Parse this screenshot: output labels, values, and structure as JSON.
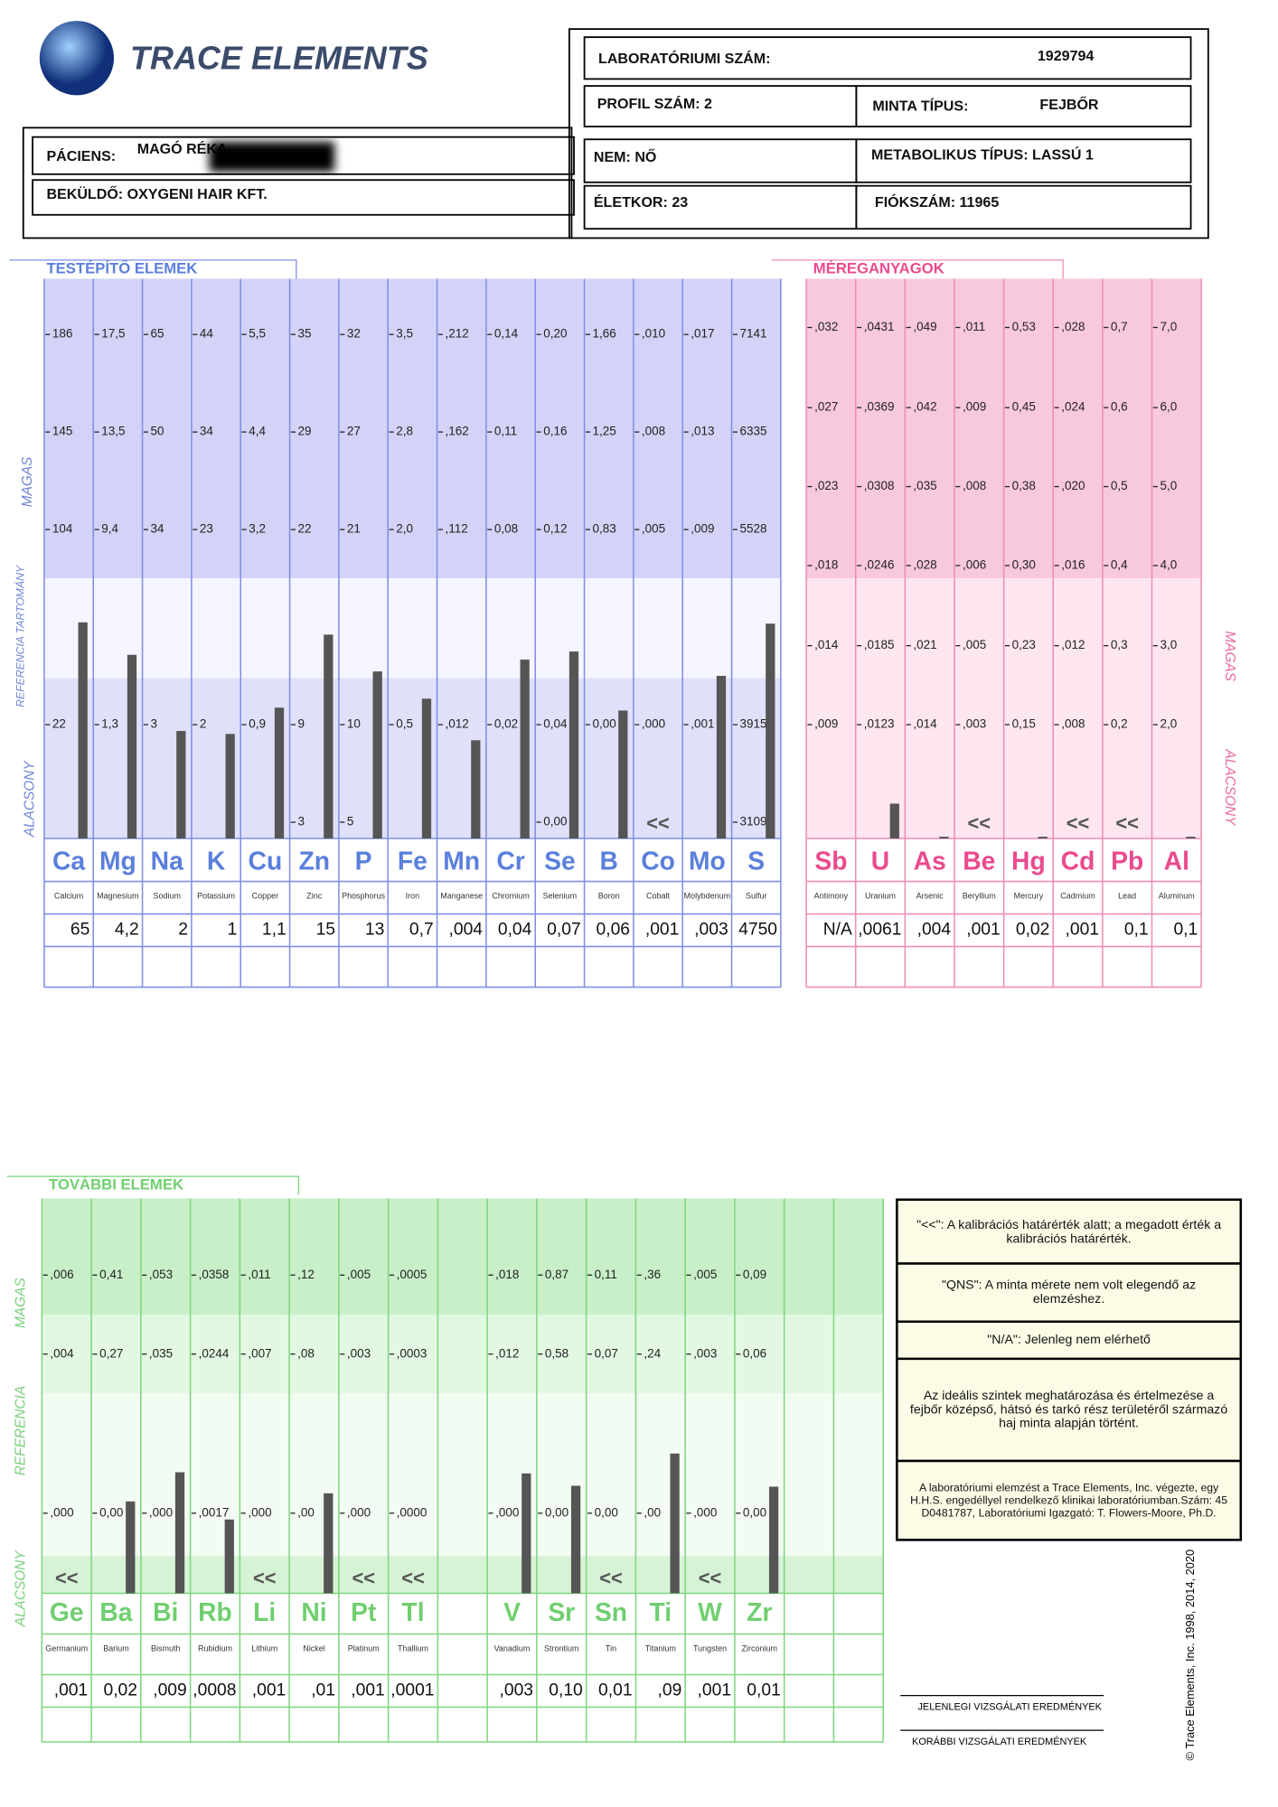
{
  "header": {
    "logo": "TRACE ELEMENTS",
    "lab_label": "LABORATÓRIUMI SZÁM:",
    "lab_number": "1929794",
    "profile": "PROFIL SZÁM: 2",
    "sample_label": "MINTA TÍPUS:",
    "sample_type": "FEJBŐR",
    "patient_label": "PÁCIENS:",
    "patient_name": "MAGÓ RÉKA",
    "sex": "NEM: NŐ",
    "metabolic": "METABOLIKUS TÍPUS: LASSÚ 1",
    "sender": "BEKÜLDŐ: OXYGENI HAIR KFT.",
    "age": "ÉLETKOR: 23",
    "account": "FIÓKSZÁM: 11965"
  },
  "panels": [
    {
      "title": "TESTÉPÍTŐ ELEMEK",
      "side_labels": [
        "MAGAS",
        "REFERENCIA TARTOMÁNY",
        "ALACSONY"
      ],
      "symbols": [
        "Ca",
        "Mg",
        "Na",
        "K",
        "Cu",
        "Zn",
        "P",
        "Fe",
        "Mn",
        "Cr",
        "Se",
        "B",
        "Co",
        "Mo",
        "S"
      ],
      "names": [
        "Calcium",
        "Magnesium",
        "Sodium",
        "Potassium",
        "Copper",
        "Zinc",
        "Phosphorus",
        "Iron",
        "Manganese",
        "Chromium",
        "Selenium",
        "Boron",
        "Cobalt",
        "Molybdenum",
        "Sulfur"
      ],
      "values": [
        65,
        4.2,
        2,
        1,
        1.1,
        15,
        13,
        0.7,
        0.004,
        0.04,
        0.07,
        0.06,
        0.001,
        0.003,
        4750
      ],
      "value_labels": [
        "65",
        "4,2",
        "2",
        "1",
        "1,1",
        "15",
        "13",
        "0,7",
        ",004",
        "0,04",
        "0,07",
        "0,06",
        ",001",
        ",003",
        "4750"
      ],
      "flags": [
        null,
        null,
        null,
        null,
        null,
        null,
        null,
        null,
        null,
        null,
        null,
        null,
        "<<",
        null,
        null
      ],
      "ticks": [
        [
          186,
          145,
          104,
          22,
          null
        ],
        [
          {
            "value": 17.5,
            "label": "17,5"
          },
          {
            "value": 13.5,
            "label": "13,5"
          },
          {
            "value": 9.4,
            "label": "9,4"
          },
          {
            "value": 1.3,
            "label": "1,3"
          },
          null
        ],
        [
          65,
          50,
          34,
          3,
          null
        ],
        [
          44,
          34,
          23,
          2,
          null
        ],
        [
          {
            "value": 5.5,
            "label": "5,5"
          },
          {
            "value": 4.4,
            "label": "4,4"
          },
          {
            "value": 3.2,
            "label": "3,2"
          },
          {
            "value": 0.9,
            "label": "0,9"
          },
          null
        ],
        [
          35,
          29,
          22,
          9,
          3
        ],
        [
          32,
          27,
          21,
          10,
          5
        ],
        [
          {
            "value": 3.5,
            "label": "3,5"
          },
          {
            "value": 2.8,
            "label": "2,8"
          },
          {
            "value": 2.0,
            "label": "2,0"
          },
          {
            "value": 0.5,
            "label": "0,5"
          },
          null
        ],
        [
          {
            "value": 0.212,
            "label": ",212"
          },
          {
            "value": 0.162,
            "label": ",162"
          },
          {
            "value": 0.112,
            "label": ",112"
          },
          {
            "value": 0.012,
            "label": ",012"
          },
          null
        ],
        [
          {
            "value": 0.14,
            "label": "0,14"
          },
          {
            "value": 0.11,
            "label": "0,11"
          },
          {
            "value": 0.08,
            "label": "0,08"
          },
          {
            "value": 0.02,
            "label": "0,02"
          },
          null
        ],
        [
          {
            "value": 0.2,
            "label": "0,20"
          },
          {
            "value": 0.16,
            "label": "0,16"
          },
          {
            "value": 0.12,
            "label": "0,12"
          },
          {
            "value": 0.04,
            "label": "0,04"
          },
          {
            "value": 0,
            "label": "0,00"
          }
        ],
        [
          {
            "value": 1.66,
            "label": "1,66"
          },
          {
            "value": 1.25,
            "label": "1,25"
          },
          {
            "value": 0.83,
            "label": "0,83"
          },
          {
            "value": 0,
            "label": "0,00"
          },
          null
        ],
        [
          {
            "value": 0.01,
            "label": ",010"
          },
          {
            "value": 0.008,
            "label": ",008"
          },
          {
            "value": 0.005,
            "label": ",005"
          },
          {
            "value": 0,
            "label": ",000"
          },
          null
        ],
        [
          {
            "value": 0.017,
            "label": ",017"
          },
          {
            "value": 0.013,
            "label": ",013"
          },
          {
            "value": 0.009,
            "label": ",009"
          },
          {
            "value": 0.001,
            "label": ",001"
          },
          null
        ],
        [
          7141,
          6335,
          5528,
          3915,
          3109
        ]
      ]
    },
    {
      "title": "MÉREGANYAGOK",
      "side_labels": [
        "MAGAS",
        "ALACSONY"
      ],
      "symbols": [
        "Sb",
        "U",
        "As",
        "Be",
        "Hg",
        "Cd",
        "Pb",
        "Al"
      ],
      "names": [
        "Antimony",
        "Uranium",
        "Arsenic",
        "Beryllium",
        "Mercury",
        "Cadmium",
        "Lead",
        "Aluminum"
      ],
      "values": [
        null,
        0.0061,
        0.004,
        0.001,
        0.02,
        0.001,
        0.1,
        0.1
      ],
      "value_labels": [
        "N/A",
        ",0061",
        ",004",
        ",001",
        "0,02",
        ",001",
        "0,1",
        "0,1"
      ],
      "flags": [
        null,
        null,
        null,
        "<<",
        null,
        "<<",
        "<<",
        null
      ],
      "ticks": [
        [
          {
            "value": 0.032,
            "label": ",032"
          },
          {
            "value": 0.027,
            "label": ",027"
          },
          {
            "value": 0.023,
            "label": ",023"
          },
          {
            "value": 0.018,
            "label": ",018"
          },
          {
            "value": 0.014,
            "label": ",014"
          },
          {
            "value": 0.009,
            "label": ",009"
          }
        ],
        [
          {
            "value": 0.0431,
            "label": ",0431"
          },
          {
            "value": 0.0369,
            "label": ",0369"
          },
          {
            "value": 0.0308,
            "label": ",0308"
          },
          {
            "value": 0.0246,
            "label": ",0246"
          },
          {
            "value": 0.0185,
            "label": ",0185"
          },
          {
            "value": 0.0123,
            "label": ",0123"
          }
        ],
        [
          {
            "value": 0.049,
            "label": ",049"
          },
          {
            "value": 0.042,
            "label": ",042"
          },
          {
            "value": 0.035,
            "label": ",035"
          },
          {
            "value": 0.028,
            "label": ",028"
          },
          {
            "value": 0.021,
            "label": ",021"
          },
          {
            "value": 0.014,
            "label": ",014"
          }
        ],
        [
          {
            "value": 0.011,
            "label": ",011"
          },
          {
            "value": 0.009,
            "label": ",009"
          },
          {
            "value": 0.008,
            "label": ",008"
          },
          {
            "value": 0.006,
            "label": ",006"
          },
          {
            "value": 0.005,
            "label": ",005"
          },
          {
            "value": 0.003,
            "label": ",003"
          }
        ],
        [
          {
            "value": 0.53,
            "label": "0,53"
          },
          {
            "value": 0.45,
            "label": "0,45"
          },
          {
            "value": 0.38,
            "label": "0,38"
          },
          {
            "value": 0.3,
            "label": "0,30"
          },
          {
            "value": 0.23,
            "label": "0,23"
          },
          {
            "value": 0.15,
            "label": "0,15"
          }
        ],
        [
          {
            "value": 0.028,
            "label": ",028"
          },
          {
            "value": 0.024,
            "label": ",024"
          },
          {
            "value": 0.02,
            "label": ",020"
          },
          {
            "value": 0.016,
            "label": ",016"
          },
          {
            "value": 0.012,
            "label": ",012"
          },
          {
            "value": 0.008,
            "label": ",008"
          }
        ],
        [
          {
            "value": 0.7,
            "label": "0,7"
          },
          {
            "value": 0.6,
            "label": "0,6"
          },
          {
            "value": 0.5,
            "label": "0,5"
          },
          {
            "value": 0.4,
            "label": "0,4"
          },
          {
            "value": 0.3,
            "label": "0,3"
          },
          {
            "value": 0.2,
            "label": "0,2"
          }
        ],
        [
          {
            "value": 7,
            "label": "7,0"
          },
          {
            "value": 6,
            "label": "6,0"
          },
          {
            "value": 5,
            "label": "5,0"
          },
          {
            "value": 4,
            "label": "4,0"
          },
          {
            "value": 3,
            "label": "3,0"
          },
          {
            "value": 2,
            "label": "2,0"
          }
        ]
      ]
    },
    {
      "title": "TOVÁBBI ELEMEK",
      "side_labels": [
        "MAGAS",
        "REFERENCIA",
        "ALACSONY"
      ],
      "symbols": [
        "Ge",
        "Ba",
        "Bi",
        "Rb",
        "Li",
        "Ni",
        "Pt",
        "Tl",
        null,
        "V",
        "Sr",
        "Sn",
        "Ti",
        "W",
        "Zr",
        null,
        null
      ],
      "names": [
        "Germanium",
        "Barium",
        "Bismuth",
        "Rubidium",
        "Lithium",
        "Nickel",
        "Platinum",
        "Thallium",
        null,
        "Vanadium",
        "Strontium",
        "Tin",
        "Titanium",
        "Tungsten",
        "Zirconium",
        null,
        null
      ],
      "values": [
        0.001,
        0.02,
        0.009,
        0.0008,
        0.001,
        0.01,
        0.001,
        0.0001,
        null,
        0.003,
        0.1,
        0.01,
        0.09,
        0.001,
        0.01,
        null,
        null
      ],
      "value_labels": [
        ",001",
        "0,02",
        ",009",
        ",0008",
        ",001",
        ",01",
        ",001",
        ",0001",
        null,
        ",003",
        "0,10",
        "0,01",
        ",09",
        ",001",
        "0,01",
        null,
        null
      ],
      "flags": [
        "<<",
        null,
        null,
        null,
        "<<",
        null,
        "<<",
        "<<",
        null,
        null,
        null,
        "<<",
        null,
        "<<",
        null,
        null,
        null
      ],
      "ticks": [
        [
          {
            "value": 0.006,
            "label": ",006"
          },
          {
            "value": 0.004,
            "label": ",004"
          },
          {
            "value": 0,
            "label": ",000"
          }
        ],
        [
          {
            "value": 0.41,
            "label": "0,41"
          },
          {
            "value": 0.27,
            "label": "0,27"
          },
          {
            "value": 0,
            "label": "0,00"
          }
        ],
        [
          {
            "value": 0.053,
            "label": ",053"
          },
          {
            "value": 0.035,
            "label": ",035"
          },
          {
            "value": 0,
            "label": ",000"
          }
        ],
        [
          {
            "value": 0.0358,
            "label": ",0358"
          },
          {
            "value": 0.0244,
            "label": ",0244"
          },
          {
            "value": 0.0017,
            "label": ",0017"
          }
        ],
        [
          {
            "value": 0.011,
            "label": ",011"
          },
          {
            "value": 0.007,
            "label": ",007"
          },
          {
            "value": 0,
            "label": ",000"
          }
        ],
        [
          {
            "value": 0.12,
            "label": ",12"
          },
          {
            "value": 0.08,
            "label": ",08"
          },
          {
            "value": 0,
            "label": ",00"
          }
        ],
        [
          {
            "value": 0.005,
            "label": ",005"
          },
          {
            "value": 0.003,
            "label": ",003"
          },
          {
            "value": 0,
            "label": ",000"
          }
        ],
        [
          {
            "value": 0.0005,
            "label": ",0005"
          },
          {
            "value": 0.0003,
            "label": ",0003"
          },
          {
            "value": 0,
            "label": ",0000"
          }
        ],
        null,
        [
          {
            "value": 0.018,
            "label": ",018"
          },
          {
            "value": 0.012,
            "label": ",012"
          },
          {
            "value": 0,
            "label": ",000"
          }
        ],
        [
          {
            "value": 0.87,
            "label": "0,87"
          },
          {
            "value": 0.58,
            "label": "0,58"
          },
          {
            "value": 0,
            "label": "0,00"
          }
        ],
        [
          {
            "value": 0.11,
            "label": "0,11"
          },
          {
            "value": 0.07,
            "label": "0,07"
          },
          {
            "value": 0,
            "label": "0,00"
          }
        ],
        [
          {
            "value": 0.36,
            "label": ",36"
          },
          {
            "value": 0.24,
            "label": ",24"
          },
          {
            "value": 0,
            "label": ",00"
          }
        ],
        [
          {
            "value": 0.005,
            "label": ",005"
          },
          {
            "value": 0.003,
            "label": ",003"
          },
          {
            "value": 0,
            "label": ",000"
          }
        ],
        [
          {
            "value": 0.09,
            "label": "0,09"
          },
          {
            "value": 0.06,
            "label": "0,06"
          },
          {
            "value": 0,
            "label": "0,00"
          }
        ],
        null,
        null
      ]
    }
  ],
  "notes": [
    "\"<<\": A kalibrációs határérték alatt; a megadott érték a kalibrációs határérték.",
    "\"QNS\": A minta mérete nem volt elegendő az elemzéshez.",
    "\"N/A\": Jelenleg nem elérhető",
    "Az ideális szintek meghatározása és értelmezése a fejbőr középső, hátsó és tarkó rész területéről származó haj minta alapján történt.",
    "A laboratóriumi elemzést a Trace Elements, Inc. végezte, egy H.H.S. engedéllyel rendelkező klinikai laboratóriumban.Szám: 45 D0481787, Laboratóriumi Igazgató: T. Flowers-Moore, Ph.D."
  ],
  "legend": [
    "JELENLEGI VIZSGÁLATI EREDMÉNYEK",
    "KORÁBBI VIZSGÁLATI EREDMÉNYEK"
  ],
  "copyright": "© Trace Elements, Inc. 1998, 2014, 2020"
}
